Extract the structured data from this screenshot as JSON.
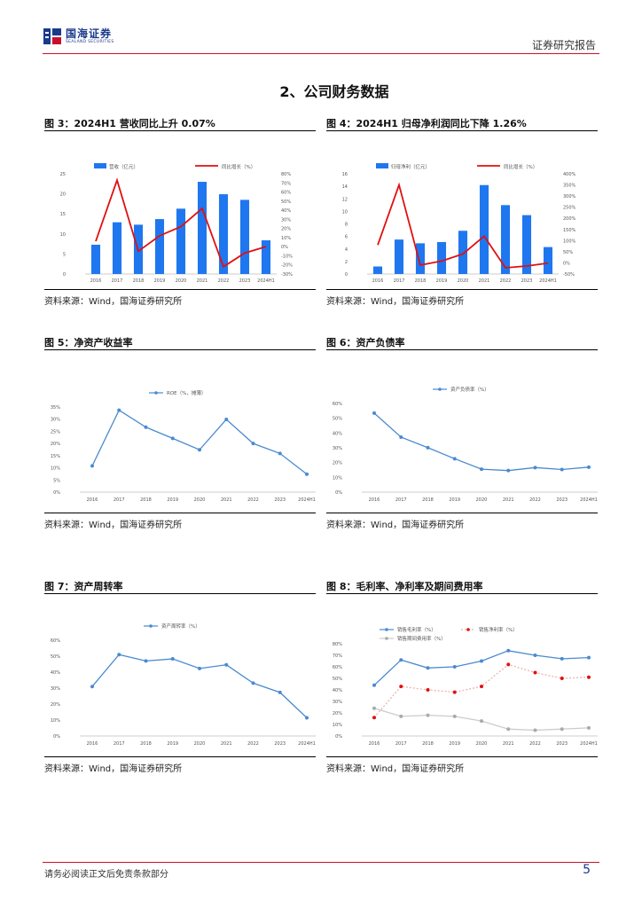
{
  "header": {
    "logo_cn": "国海证券",
    "logo_en": "SEALAND SECURITIES",
    "report_type": "证券研究报告"
  },
  "section_title": "2、公司财务数据",
  "figures": [
    {
      "title": "图 3：2024H1 营收同比上升 0.07%",
      "source": "资料来源：Wind，国海证券研究所"
    },
    {
      "title": "图 4：2024H1 归母净利润同比下降 1.26%",
      "source": "资料来源：Wind，国海证券研究所"
    },
    {
      "title": "图 5：净资产收益率",
      "source": "资料来源：Wind，国海证券研究所"
    },
    {
      "title": "图 6：资产负债率",
      "source": "资料来源：Wind，国海证券研究所"
    },
    {
      "title": "图 7：资产周转率",
      "source": "资料来源：Wind，国海证券研究所"
    },
    {
      "title": "图 8：毛利率、净利率及期间费用率",
      "source": "资料来源：Wind，国海证券研究所"
    }
  ],
  "footer": {
    "disclaimer": "请务必阅读正文后免责条款部分",
    "page": "5"
  },
  "colors": {
    "blue": "#1f77f0",
    "red": "#e01010",
    "line_blue": "#4a8ad0",
    "gray": "#aaaaaa"
  },
  "chart_data": [
    {
      "type": "bar",
      "categories": [
        "2016",
        "2017",
        "2018",
        "2019",
        "2020",
        "2021",
        "2022",
        "2023",
        "2024H1"
      ],
      "series": [
        {
          "name": "营收（亿元）",
          "type": "bar",
          "values": [
            7.3,
            12.9,
            12.3,
            13.7,
            16.3,
            23.0,
            19.9,
            18.5,
            8.4
          ]
        },
        {
          "name": "同比增长（%）",
          "type": "line",
          "axis": "right",
          "values": [
            6,
            73,
            -5,
            12,
            22,
            42,
            -22,
            -7,
            0.07
          ]
        }
      ],
      "yticks_left": [
        "0",
        "5",
        "10",
        "15",
        "20",
        "25"
      ],
      "ylim_left": [
        0,
        25
      ],
      "yticks_right": [
        "-30%",
        "-20%",
        "-10%",
        "0%",
        "10%",
        "20%",
        "30%",
        "40%",
        "50%",
        "60%",
        "70%",
        "80%"
      ],
      "ylim_right": [
        -30,
        80
      ]
    },
    {
      "type": "bar",
      "categories": [
        "2016",
        "2017",
        "2018",
        "2019",
        "2020",
        "2021",
        "2022",
        "2023",
        "2024H1"
      ],
      "series": [
        {
          "name": "归母净利（亿元）",
          "type": "bar",
          "values": [
            1.2,
            5.5,
            4.9,
            5.1,
            6.9,
            14.2,
            11.0,
            9.4,
            4.3
          ]
        },
        {
          "name": "同比增长（%）",
          "type": "line",
          "axis": "right",
          "values": [
            80,
            350,
            -10,
            8,
            40,
            120,
            -22,
            -14,
            -1.26
          ]
        }
      ],
      "yticks_left": [
        "0",
        "2",
        "4",
        "6",
        "8",
        "10",
        "12",
        "14",
        "16"
      ],
      "ylim_left": [
        0,
        16
      ],
      "yticks_right": [
        "-50%",
        "0%",
        "50%",
        "100%",
        "150%",
        "200%",
        "250%",
        "300%",
        "350%",
        "400%"
      ],
      "ylim_right": [
        -50,
        400
      ]
    },
    {
      "type": "line",
      "legend": "ROE（%，摊薄）",
      "x": [
        "2016",
        "2017",
        "2018",
        "2019",
        "2020",
        "2021",
        "2022",
        "2023",
        "2024H1"
      ],
      "series": [
        {
          "name": "ROE（%，摊薄）",
          "values": [
            10.8,
            33.7,
            26.7,
            22.1,
            17.4,
            29.9,
            20.0,
            15.9,
            7.4
          ]
        }
      ],
      "yticks": [
        "0%",
        "5%",
        "10%",
        "15%",
        "20%",
        "25%",
        "30%",
        "35%"
      ],
      "ylim": [
        0,
        35
      ]
    },
    {
      "type": "line",
      "legend": "资产负债率（%）",
      "x": [
        "2016",
        "2017",
        "2018",
        "2019",
        "2020",
        "2021",
        "2022",
        "2023",
        "2024H1"
      ],
      "series": [
        {
          "name": "资产负债率（%）",
          "values": [
            53.5,
            37.2,
            30.1,
            22.6,
            15.5,
            14.6,
            16.6,
            15.3,
            16.9
          ]
        }
      ],
      "yticks": [
        "0%",
        "10%",
        "20%",
        "30%",
        "40%",
        "50%",
        "60%"
      ],
      "ylim": [
        0,
        60
      ]
    },
    {
      "type": "line",
      "legend": "资产周转率（%）",
      "x": [
        "2016",
        "2017",
        "2018",
        "2019",
        "2020",
        "2021",
        "2022",
        "2023",
        "2024H1"
      ],
      "series": [
        {
          "name": "资产周转率（%）",
          "values": [
            31.0,
            51.0,
            47.0,
            48.3,
            42.3,
            44.6,
            33.1,
            27.3,
            11.4
          ]
        }
      ],
      "yticks": [
        "0%",
        "10%",
        "20%",
        "30%",
        "40%",
        "50%",
        "60%"
      ],
      "ylim": [
        0,
        60
      ]
    },
    {
      "type": "line",
      "x": [
        "2016",
        "2017",
        "2018",
        "2019",
        "2020",
        "2021",
        "2022",
        "2023",
        "2024H1"
      ],
      "series": [
        {
          "name": "销售毛利率（%）",
          "values": [
            44,
            66,
            59,
            60,
            65,
            74,
            70,
            67,
            68
          ]
        },
        {
          "name": "销售净利率（%）",
          "values": [
            16,
            43,
            40,
            38,
            43,
            62,
            55,
            50,
            51
          ]
        },
        {
          "name": "销售期间费用率（%）",
          "values": [
            24,
            17,
            18,
            17,
            13,
            6,
            5,
            6,
            7
          ]
        }
      ],
      "yticks": [
        "0%",
        "10%",
        "20%",
        "30%",
        "40%",
        "50%",
        "60%",
        "70%",
        "80%"
      ],
      "ylim": [
        0,
        80
      ]
    }
  ]
}
